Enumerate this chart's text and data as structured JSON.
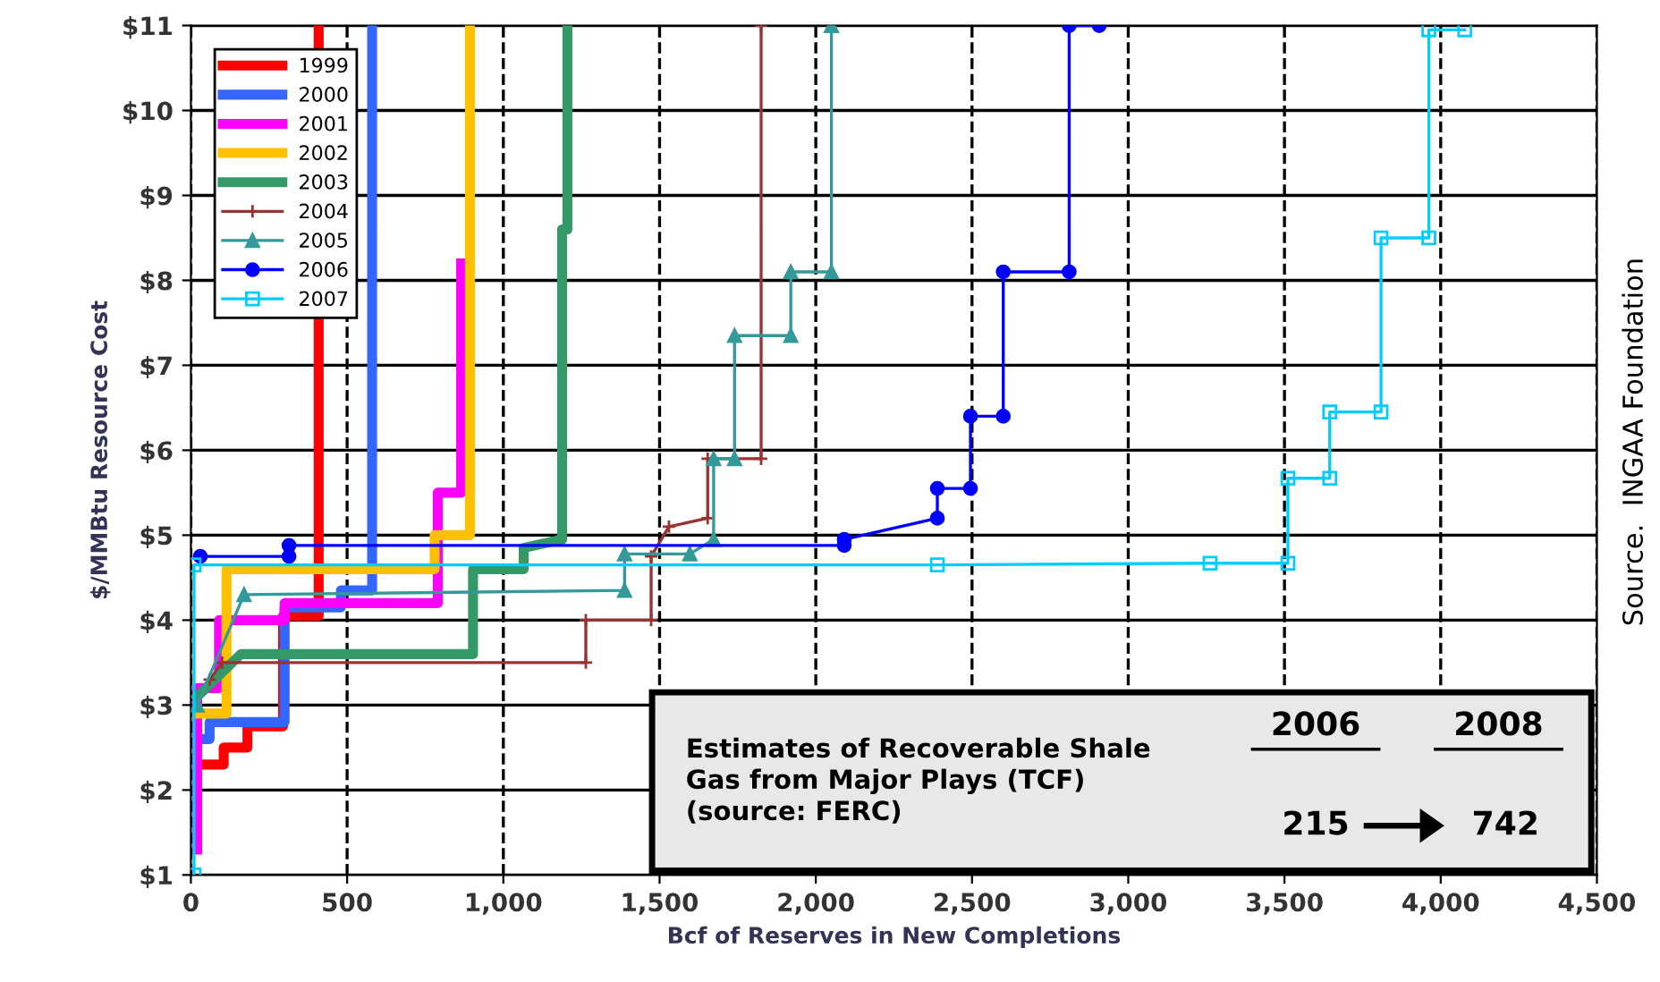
{
  "chart_data": {
    "type": "line",
    "xlabel": "Bcf of Reserves in New Completions",
    "ylabel": "$/MMBtu Resource Cost",
    "xlim": [
      0,
      4500
    ],
    "ylim": [
      1,
      11
    ],
    "xticks": [
      0,
      500,
      {
        "value": 1000,
        "label": "1,000"
      },
      {
        "value": 1500,
        "label": "1,500"
      },
      {
        "value": 2000,
        "label": "2,000"
      },
      {
        "value": 2500,
        "label": "2,500"
      },
      {
        "value": 3000,
        "label": "3,000"
      },
      {
        "value": 3500,
        "label": "3,500"
      },
      {
        "value": 4000,
        "label": "4,000"
      },
      {
        "value": 4500,
        "label": "4,500"
      }
    ],
    "yticks": [
      {
        "value": 1,
        "label": "$1"
      },
      {
        "value": 2,
        "label": "$2"
      },
      {
        "value": 3,
        "label": "$3"
      },
      {
        "value": 4,
        "label": "$4"
      },
      {
        "value": 5,
        "label": "$5"
      },
      {
        "value": 6,
        "label": "$6"
      },
      {
        "value": 7,
        "label": "$7"
      },
      {
        "value": 8,
        "label": "$8"
      },
      {
        "value": 9,
        "label": "$9"
      },
      {
        "value": 10,
        "label": "$10"
      },
      {
        "value": 11,
        "label": "$11"
      }
    ],
    "grid": true,
    "legend": "top left",
    "series": [
      {
        "name": "1999",
        "color": "#ff0000",
        "marker": "none",
        "x": [
          38,
          105,
          105,
          181,
          181,
          295,
          295,
          409,
          409
        ],
        "values": [
          2.3,
          2.3,
          2.5,
          2.5,
          2.75,
          2.75,
          4.05,
          4.05,
          11
        ]
      },
      {
        "name": "2000",
        "color": "#3366ff",
        "marker": "none",
        "x": [
          30,
          60,
          60,
          300,
          300,
          480,
          480,
          580,
          580
        ],
        "values": [
          2.6,
          2.6,
          2.8,
          2.8,
          4.15,
          4.15,
          4.35,
          4.35,
          11
        ]
      },
      {
        "name": "2001",
        "color": "#ff00ff",
        "marker": "none",
        "x": [
          20,
          20,
          90,
          90,
          300,
          300,
          790,
          790,
          865,
          865
        ],
        "values": [
          1.3,
          3.2,
          3.2,
          4.0,
          4.0,
          4.2,
          4.2,
          5.5,
          5.5,
          8.2
        ]
      },
      {
        "name": "2002",
        "color": "#ffc000",
        "marker": "none",
        "x": [
          20,
          114,
          114,
          780,
          780,
          893,
          893
        ],
        "values": [
          2.9,
          2.9,
          4.6,
          4.6,
          5.0,
          5.0,
          11
        ]
      },
      {
        "name": "2003",
        "color": "#339966",
        "marker": "none",
        "x": [
          20,
          160,
          903,
          903,
          1065,
          1065,
          1188,
          1188,
          1205,
          1205
        ],
        "values": [
          3.1,
          3.6,
          3.6,
          4.6,
          4.6,
          4.85,
          4.95,
          8.6,
          8.6,
          11
        ]
      },
      {
        "name": "2004",
        "color": "#993333",
        "marker": "cross",
        "x": [
          60,
          100,
          1264,
          1264,
          1473,
          1473,
          1530,
          1654,
          1654,
          1825,
          1825
        ],
        "values": [
          3.3,
          3.5,
          3.5,
          4.0,
          4.0,
          4.75,
          5.1,
          5.2,
          5.9,
          5.9,
          11
        ]
      },
      {
        "name": "2005",
        "color": "#339999",
        "marker": "triangle",
        "x": [
          20,
          170,
          1388,
          1388,
          1597,
          1673,
          1673,
          1740,
          1740,
          1920,
          1920,
          2050,
          2050
        ],
        "values": [
          3.0,
          4.3,
          4.35,
          4.78,
          4.78,
          4.95,
          5.9,
          5.9,
          7.35,
          7.35,
          8.1,
          8.1,
          11
        ]
      },
      {
        "name": "2006",
        "color": "#0000ff",
        "marker": "circle",
        "x": [
          30,
          314,
          314,
          2091,
          2091,
          2389,
          2389,
          2495,
          2495,
          2600,
          2600,
          2811,
          2811,
          2907
        ],
        "values": [
          4.75,
          4.75,
          4.88,
          4.88,
          4.95,
          5.2,
          5.55,
          5.55,
          6.4,
          6.4,
          8.1,
          8.1,
          11,
          11
        ]
      },
      {
        "name": "2007",
        "color": "#00ccff",
        "marker": "square",
        "x": [
          10,
          10,
          2389,
          3262,
          3511,
          3511,
          3645,
          3645,
          3809,
          3809,
          3962,
          3962,
          4077
        ],
        "values": [
          1,
          4.65,
          4.65,
          4.67,
          4.67,
          5.67,
          5.67,
          6.45,
          6.45,
          8.5,
          8.5,
          10.95,
          10.95
        ]
      }
    ],
    "annotations": [
      "Estimates of Recoverable Shale\nGas from Major Plays (TCF)\n(source: FERC)",
      "2006",
      "2008",
      "215",
      "742",
      "Source.  INGAA Foundation"
    ]
  }
}
